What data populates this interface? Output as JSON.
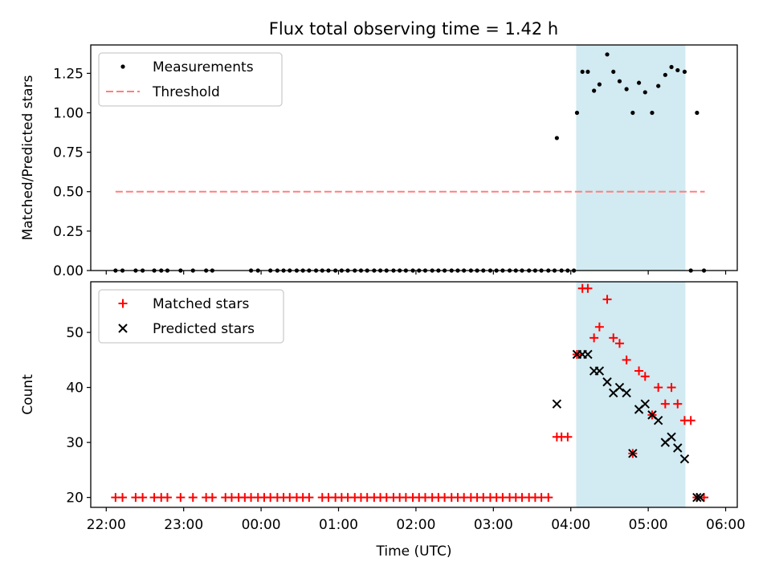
{
  "chart_data": [
    {
      "type": "scatter",
      "title": "Flux total observing time = 1.42 h",
      "ylabel": "Matched/Predicted stars",
      "xlabel": "",
      "xlim": [
        -2.2,
        6.15
      ],
      "ylim": [
        0,
        1.43
      ],
      "yticks": [
        0,
        0.25,
        0.5,
        0.75,
        1.0,
        1.25
      ],
      "ytick_labels": [
        "0.00",
        "0.25",
        "0.50",
        "0.75",
        "1.00",
        "1.25"
      ],
      "legend": {
        "location": "top-left",
        "entries": [
          "Measurements",
          "Threshold"
        ]
      },
      "shaded_interval": [
        4.07,
        5.48
      ],
      "colors": {
        "measurements": "#000000",
        "threshold": "#ff7f7f",
        "shade": "#add8e6"
      },
      "threshold": {
        "name": "Threshold",
        "value": 0.5,
        "x_range": [
          -1.88,
          5.73
        ]
      },
      "series": [
        {
          "name": "Measurements",
          "x": [
            -1.88,
            -1.79,
            -1.62,
            -1.53,
            -1.38,
            -1.29,
            -1.21,
            -1.04,
            -0.88,
            -0.71,
            -0.63,
            -0.13,
            -0.04,
            0.12,
            0.21,
            0.29,
            0.37,
            0.46,
            0.54,
            0.62,
            0.71,
            0.79,
            0.87,
            0.96,
            1.04,
            1.12,
            1.21,
            1.29,
            1.37,
            1.46,
            1.54,
            1.62,
            1.71,
            1.79,
            1.87,
            1.96,
            2.04,
            2.12,
            2.21,
            2.29,
            2.37,
            2.46,
            2.54,
            2.62,
            2.71,
            2.79,
            2.87,
            2.96,
            3.04,
            3.12,
            3.21,
            3.29,
            3.37,
            3.46,
            3.54,
            3.62,
            3.71,
            3.79,
            3.82,
            3.88,
            3.96,
            4.04,
            4.08,
            4.15,
            4.22,
            4.3,
            4.37,
            4.47,
            4.55,
            4.63,
            4.72,
            4.8,
            4.88,
            4.96,
            5.05,
            5.13,
            5.22,
            5.3,
            5.38,
            5.47,
            5.55,
            5.63,
            5.72
          ],
          "y": [
            0,
            0,
            0,
            0,
            0,
            0,
            0,
            0,
            0,
            0,
            0,
            0,
            0,
            0,
            0,
            0,
            0,
            0,
            0,
            0,
            0,
            0,
            0,
            0,
            0,
            0,
            0,
            0,
            0,
            0,
            0,
            0,
            0,
            0,
            0,
            0,
            0,
            0,
            0,
            0,
            0,
            0,
            0,
            0,
            0,
            0,
            0,
            0,
            0,
            0,
            0,
            0,
            0,
            0,
            0,
            0,
            0,
            0,
            0.84,
            0,
            0,
            0,
            1.0,
            1.26,
            1.26,
            1.14,
            1.18,
            1.37,
            1.26,
            1.2,
            1.15,
            1.0,
            1.19,
            1.13,
            1.0,
            1.17,
            1.24,
            1.29,
            1.27,
            1.26,
            0,
            1.0,
            0
          ]
        }
      ]
    },
    {
      "type": "scatter",
      "title": "",
      "ylabel": "Count",
      "xlabel": "Time (UTC)",
      "xlim": [
        -2.2,
        6.15
      ],
      "ylim": [
        18.2,
        59.2
      ],
      "yticks": [
        20,
        30,
        40,
        50
      ],
      "ytick_labels": [
        "20",
        "30",
        "40",
        "50"
      ],
      "xticks": [
        -2,
        -1,
        0,
        1,
        2,
        3,
        4,
        5,
        6
      ],
      "xtick_labels": [
        "22:00",
        "23:00",
        "00:00",
        "01:00",
        "02:00",
        "03:00",
        "04:00",
        "05:00",
        "06:00"
      ],
      "legend": {
        "location": "top-left",
        "entries": [
          "Matched stars",
          "Predicted stars"
        ]
      },
      "shaded_interval": [
        4.07,
        5.48
      ],
      "colors": {
        "matched": "#ff0000",
        "predicted": "#000000",
        "shade": "#add8e6"
      },
      "series": [
        {
          "name": "Matched stars",
          "marker": "+",
          "x": [
            -1.88,
            -1.79,
            -1.62,
            -1.53,
            -1.38,
            -1.29,
            -1.21,
            -1.04,
            -0.88,
            -0.71,
            -0.63,
            -0.46,
            -0.38,
            -0.29,
            -0.21,
            -0.13,
            -0.04,
            0.04,
            0.12,
            0.21,
            0.29,
            0.37,
            0.46,
            0.54,
            0.62,
            0.79,
            0.87,
            0.96,
            1.04,
            1.12,
            1.21,
            1.29,
            1.37,
            1.46,
            1.54,
            1.62,
            1.71,
            1.79,
            1.87,
            1.96,
            2.04,
            2.12,
            2.21,
            2.29,
            2.37,
            2.46,
            2.54,
            2.62,
            2.71,
            2.79,
            2.87,
            2.96,
            3.04,
            3.12,
            3.21,
            3.29,
            3.37,
            3.46,
            3.54,
            3.62,
            3.71,
            3.82,
            3.88,
            3.96,
            4.08,
            4.15,
            4.22,
            4.3,
            4.37,
            4.47,
            4.55,
            4.63,
            4.72,
            4.8,
            4.88,
            4.96,
            5.05,
            5.13,
            5.22,
            5.3,
            5.38,
            5.47,
            5.55,
            5.63,
            5.72
          ],
          "y": [
            20,
            20,
            20,
            20,
            20,
            20,
            20,
            20,
            20,
            20,
            20,
            20,
            20,
            20,
            20,
            20,
            20,
            20,
            20,
            20,
            20,
            20,
            20,
            20,
            20,
            20,
            20,
            20,
            20,
            20,
            20,
            20,
            20,
            20,
            20,
            20,
            20,
            20,
            20,
            20,
            20,
            20,
            20,
            20,
            20,
            20,
            20,
            20,
            20,
            20,
            20,
            20,
            20,
            20,
            20,
            20,
            20,
            20,
            20,
            20,
            20,
            31,
            31,
            31,
            46,
            58,
            58,
            49,
            51,
            56,
            49,
            48,
            45,
            28,
            43,
            42,
            35,
            40,
            37,
            40,
            37,
            34,
            34,
            20,
            20
          ]
        },
        {
          "name": "Predicted stars",
          "marker": "x",
          "x": [
            3.82,
            4.08,
            4.15,
            4.22,
            4.3,
            4.37,
            4.47,
            4.55,
            4.63,
            4.72,
            4.8,
            4.88,
            4.96,
            5.05,
            5.13,
            5.22,
            5.3,
            5.38,
            5.47,
            5.63,
            5.67
          ],
          "y": [
            37,
            46,
            46,
            46,
            43,
            43,
            41,
            39,
            40,
            39,
            28,
            36,
            37,
            35,
            34,
            30,
            31,
            29,
            27,
            20,
            20
          ]
        }
      ]
    }
  ]
}
